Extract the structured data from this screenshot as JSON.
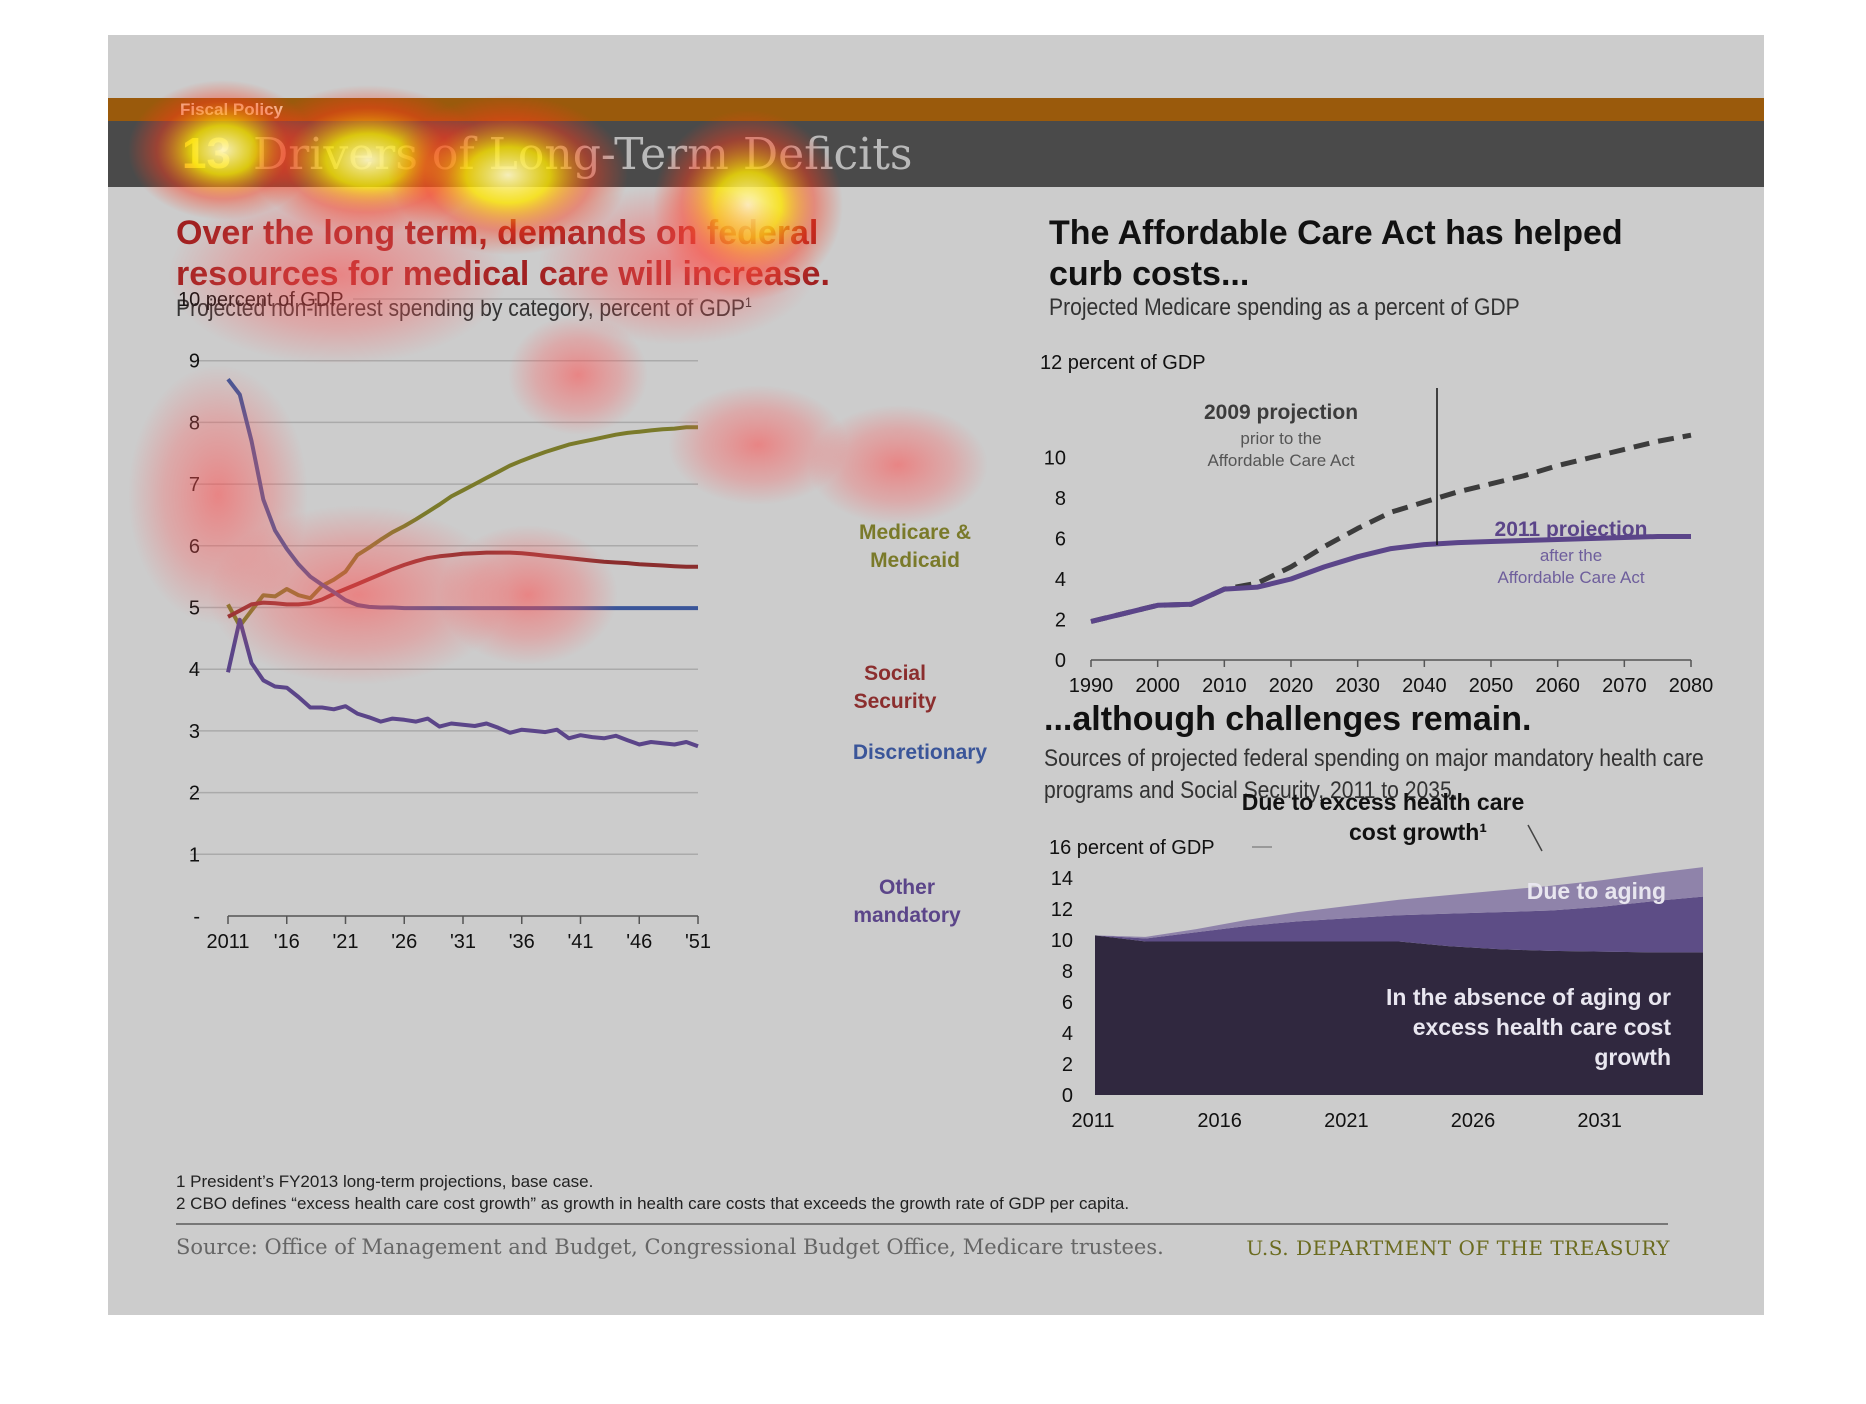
{
  "banner": {
    "section": "Fiscal Policy",
    "number": "13",
    "title": "Drivers of Long-Term Deficits"
  },
  "left": {
    "headline_line1": "Over the long term, demands on federal",
    "headline_line2": "resources for medical care will increase.",
    "subtitle": "Projected non-interest spending by category, percent of GDP",
    "subtitle_sup": "1"
  },
  "right_top": {
    "headline_line1": "The Affordable Care Act has helped",
    "headline_line2": "curb costs...",
    "subtitle": "Projected Medicare spending as a percent of GDP"
  },
  "right_bottom": {
    "headline": "...although challenges remain.",
    "subtitle_line1": "Sources of projected federal spending on major mandatory health care",
    "subtitle_line2": "programs and Social Security, 2011 to 2035."
  },
  "footnotes": {
    "f1": "1 President’s FY2013 long-term projections, base case.",
    "f2": "2 CBO defines “excess health care cost growth” as growth in health care costs that exceeds the growth rate of GDP per capita."
  },
  "source": "Source: Office of Management and Budget, Congressional Budget Office, Medicare trustees.",
  "agency": "U.S. DEPARTMENT OF THE TREASURY",
  "chart_data": [
    {
      "type": "line",
      "ylabel_top": "10 percent of GDP",
      "ylim": [
        0,
        10
      ],
      "ytick_labels": [
        "-",
        "1",
        "2",
        "3",
        "4",
        "5",
        "6",
        "7",
        "8",
        "9",
        "10 percent of GDP"
      ],
      "xtick_labels": [
        "2011",
        "'16",
        "'21",
        "'26",
        "'31",
        "'36",
        "'41",
        "'46",
        "'51"
      ],
      "x": [
        2011,
        2012,
        2013,
        2014,
        2015,
        2016,
        2017,
        2018,
        2019,
        2020,
        2021,
        2022,
        2023,
        2024,
        2025,
        2026,
        2027,
        2028,
        2029,
        2030,
        2031,
        2032,
        2033,
        2034,
        2035,
        2036,
        2037,
        2038,
        2039,
        2040,
        2041,
        2042,
        2043,
        2044,
        2045,
        2046,
        2047,
        2048,
        2049,
        2050,
        2051
      ],
      "grid": true,
      "series": [
        {
          "name": "Medicare & Medicaid",
          "label_lines": [
            "Medicare &",
            "Medicaid"
          ],
          "color": "#7a7a2a",
          "values": [
            5.05,
            4.7,
            4.95,
            5.2,
            5.18,
            5.3,
            5.2,
            5.15,
            5.35,
            5.45,
            5.58,
            5.85,
            5.97,
            6.1,
            6.22,
            6.32,
            6.43,
            6.55,
            6.67,
            6.8,
            6.9,
            7.0,
            7.1,
            7.2,
            7.3,
            7.38,
            7.45,
            7.52,
            7.58,
            7.64,
            7.68,
            7.72,
            7.76,
            7.8,
            7.83,
            7.85,
            7.87,
            7.89,
            7.9,
            7.92,
            7.92
          ]
        },
        {
          "name": "Social Security",
          "label_lines": [
            "Social",
            "Security"
          ],
          "color": "#8b2e2e",
          "values": [
            4.85,
            4.95,
            5.05,
            5.08,
            5.07,
            5.05,
            5.05,
            5.07,
            5.13,
            5.22,
            5.3,
            5.38,
            5.46,
            5.54,
            5.62,
            5.69,
            5.75,
            5.8,
            5.83,
            5.85,
            5.87,
            5.88,
            5.89,
            5.89,
            5.89,
            5.88,
            5.86,
            5.84,
            5.82,
            5.8,
            5.78,
            5.76,
            5.74,
            5.73,
            5.72,
            5.7,
            5.69,
            5.68,
            5.67,
            5.66,
            5.66
          ]
        },
        {
          "name": "Discretionary",
          "label_lines": [
            "Discretionary"
          ],
          "color": "#3a5599",
          "values": [
            8.7,
            8.45,
            7.7,
            6.75,
            6.25,
            5.95,
            5.7,
            5.5,
            5.37,
            5.25,
            5.12,
            5.04,
            5.01,
            5.0,
            5.0,
            4.99,
            4.99,
            4.99,
            4.99,
            4.99,
            4.99,
            4.99,
            4.99,
            4.99,
            4.99,
            4.99,
            4.99,
            4.99,
            4.99,
            4.99,
            4.99,
            4.99,
            4.99,
            4.99,
            4.99,
            4.99,
            4.99,
            4.99,
            4.99,
            4.99,
            4.99
          ]
        },
        {
          "name": "Other mandatory",
          "label_lines": [
            "Other",
            "mandatory"
          ],
          "color": "#5b4589",
          "values": [
            3.95,
            4.8,
            4.1,
            3.82,
            3.72,
            3.7,
            3.55,
            3.38,
            3.38,
            3.35,
            3.4,
            3.28,
            3.22,
            3.15,
            3.2,
            3.18,
            3.15,
            3.2,
            3.07,
            3.12,
            3.1,
            3.08,
            3.12,
            3.05,
            2.97,
            3.02,
            3.0,
            2.98,
            3.02,
            2.88,
            2.93,
            2.9,
            2.88,
            2.92,
            2.85,
            2.78,
            2.82,
            2.8,
            2.78,
            2.82,
            2.75
          ]
        }
      ]
    },
    {
      "type": "line",
      "ylabel_top": "12 percent of GDP",
      "ylim": [
        0,
        12
      ],
      "ytick_labels": [
        "0",
        "2",
        "4",
        "6",
        "8",
        "10",
        "12 percent of GDP"
      ],
      "xtick_labels": [
        "1990",
        "2000",
        "2010",
        "2020",
        "2030",
        "2040",
        "2050",
        "2060",
        "2070",
        "2080"
      ],
      "xlim": [
        1990,
        2080
      ],
      "series": [
        {
          "name": "2009 projection",
          "sublabel_lines": [
            "prior to the",
            "Affordable Care Act"
          ],
          "color": "#3c3c3c",
          "style": "dashed",
          "x": [
            1990,
            1995,
            2000,
            2005,
            2010,
            2015,
            2020,
            2025,
            2030,
            2035,
            2040,
            2045,
            2050,
            2055,
            2060,
            2065,
            2070,
            2075,
            2080
          ],
          "values": [
            1.9,
            2.3,
            2.7,
            2.75,
            3.5,
            3.8,
            4.6,
            5.6,
            6.5,
            7.3,
            7.8,
            8.3,
            8.7,
            9.1,
            9.6,
            10.0,
            10.4,
            10.8,
            11.1
          ]
        },
        {
          "name": "2011 projection",
          "sublabel_lines": [
            "after the",
            "Affordable Care Act"
          ],
          "color": "#5b4589",
          "style": "solid",
          "x": [
            1990,
            1995,
            2000,
            2005,
            2010,
            2015,
            2020,
            2025,
            2030,
            2035,
            2040,
            2045,
            2050,
            2055,
            2060,
            2065,
            2070,
            2075,
            2080
          ],
          "values": [
            1.9,
            2.3,
            2.7,
            2.75,
            3.5,
            3.6,
            4.0,
            4.6,
            5.1,
            5.5,
            5.7,
            5.8,
            5.85,
            5.9,
            5.95,
            6.0,
            6.05,
            6.1,
            6.1
          ]
        }
      ]
    },
    {
      "type": "area",
      "ylabel_top": "16 percent of GDP",
      "ylim": [
        0,
        16
      ],
      "ytick_labels": [
        "0",
        "2",
        "4",
        "6",
        "8",
        "10",
        "12",
        "14",
        "16 percent of GDP"
      ],
      "xtick_labels": [
        "2011",
        "2016",
        "2021",
        "2026",
        "2031"
      ],
      "x": [
        2011,
        2013,
        2015,
        2017,
        2019,
        2021,
        2023,
        2025,
        2027,
        2029,
        2031,
        2033,
        2035
      ],
      "series": [
        {
          "name": "In the absence of aging or excess health care cost growth",
          "label_lines": [
            "In the absence of aging or",
            "excess health care cost",
            "growth"
          ],
          "color": "#30283f",
          "values": [
            10.3,
            9.9,
            9.9,
            9.9,
            9.9,
            9.9,
            9.9,
            9.6,
            9.4,
            9.3,
            9.25,
            9.2,
            9.2
          ]
        },
        {
          "name": "Due to aging",
          "label_lines": [
            "Due to aging"
          ],
          "color": "#5d4d86",
          "values": [
            0.0,
            0.2,
            0.6,
            1.0,
            1.3,
            1.5,
            1.7,
            2.1,
            2.4,
            2.6,
            2.9,
            3.3,
            3.6
          ]
        },
        {
          "name": "Due to excess health care cost growth",
          "label_lines": [
            "Due to excess  health care",
            "cost growth¹"
          ],
          "color": "#8f83aa",
          "values": [
            0.0,
            0.1,
            0.2,
            0.4,
            0.6,
            0.8,
            1.0,
            1.2,
            1.4,
            1.6,
            1.7,
            1.8,
            1.9
          ]
        }
      ]
    }
  ]
}
